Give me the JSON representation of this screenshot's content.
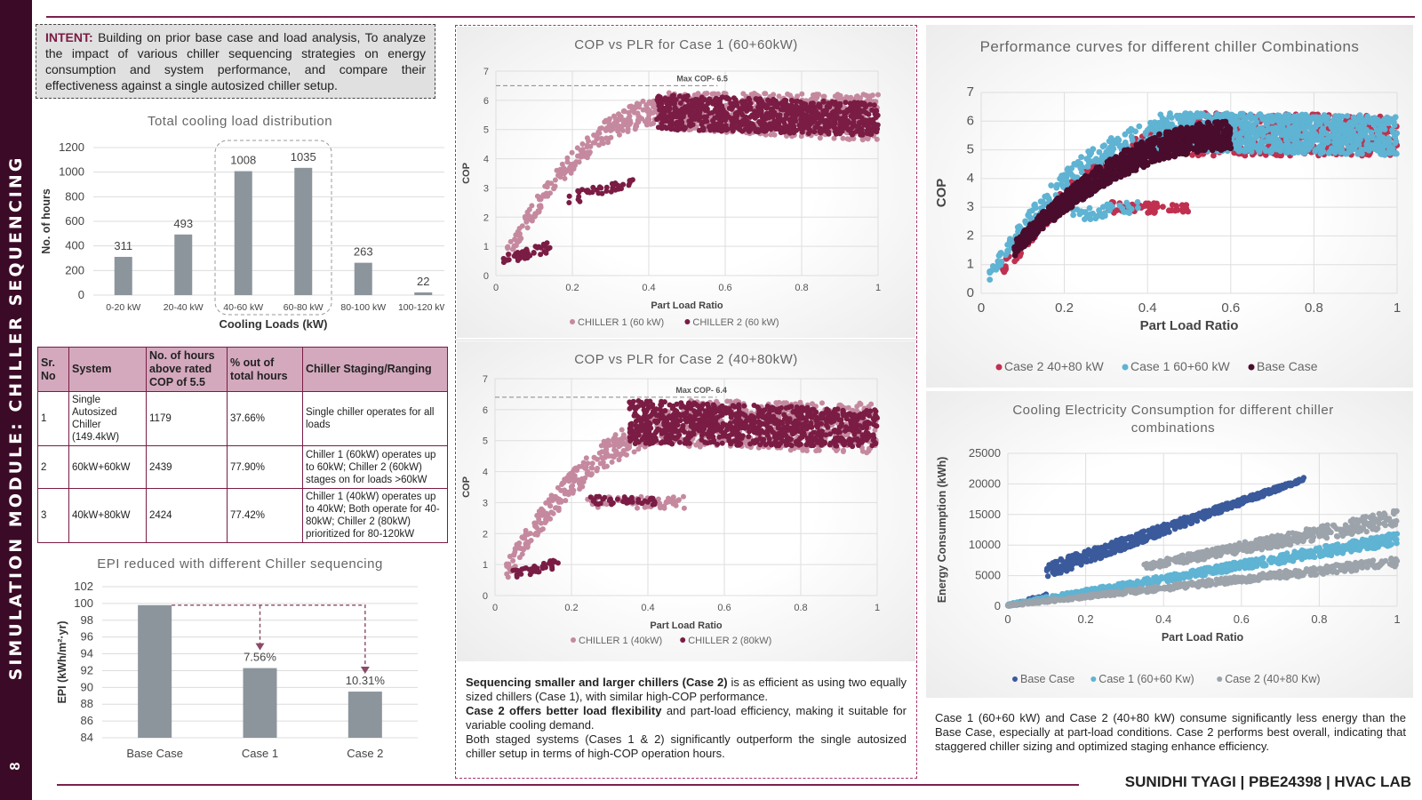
{
  "sidebar": {
    "title": "SIMULATION MODULE: CHILLER SEQUENCING",
    "page_number": "8"
  },
  "intent": {
    "label": "INTENT:",
    "text": "Building on prior base case and load analysis, To analyze the impact of various chiller sequencing strategies on energy consumption and system performance, and compare their effectiveness against a single autosized chiller setup."
  },
  "staging_table": {
    "headers": [
      "Sr. No",
      "System",
      "No. of hours above rated COP of 5.5",
      "% out of total hours",
      "Chiller Staging/Ranging"
    ],
    "rows": [
      [
        "1",
        "Single Autosized Chiller (149.4kW)",
        "1179",
        "37.66%",
        "Single chiller operates for all loads"
      ],
      [
        "2",
        "60kW+60kW",
        "2439",
        "77.90%",
        "Chiller 1 (60kW) operates up to 60kW; Chiller 2 (60kW) stages on for loads >60kW"
      ],
      [
        "3",
        "40kW+80kW",
        "2424",
        "77.42%",
        "Chiller 1 (40kW) operates up to 40kW; Both operate for 40-80kW; Chiller 2 (80kW) prioritized for 80-120kW"
      ]
    ]
  },
  "mid_text": {
    "p1_bold": "Sequencing smaller and larger chillers (Case 2)",
    "p1_rest": " is as efficient as using two equally sized chillers (Case 1), with similar high-COP performance.",
    "p2_bold": "Case 2 offers better load flexibility",
    "p2_rest": " and part-load efficiency, making it suitable for variable cooling demand.",
    "p3": "Both staged systems (Cases 1 & 2) significantly outperform the single autosized chiller setup in terms of high-COP operation hours."
  },
  "right_text": "Case 1 (60+60 kW) and Case 2 (40+80 kW) consume significantly less energy than the Base Case, especially at part-load conditions. Case 2 performs best overall, indicating that staggered chiller sizing and optimized staging enhance efficiency.",
  "footer": "SUNIDHI TYAGI | PBE24398 | HVAC LAB",
  "colors": {
    "accent": "#7a1c44",
    "sidebar": "#3b0a26",
    "bar_gray": "#8c959c",
    "chiller1": "#c5899f",
    "chiller2": "#7a1c44",
    "base_case_dark": "#4a0c2c",
    "case1_blue": "#5fb3d3",
    "case2_red": "#c0304f",
    "energy_base": "#3a5a9c",
    "energy_case1": "#5fb3d3",
    "energy_case2": "#9ca3aa"
  },
  "chart_data": [
    {
      "id": "load_dist",
      "type": "bar",
      "title": "Total cooling load distribution",
      "xlabel": "Cooling Loads (kW)",
      "ylabel": "No. of hours",
      "categories": [
        "0-20 kW",
        "20-40 kW",
        "40-60 kW",
        "60-80 kW",
        "80-100 kW",
        "100-120 kW"
      ],
      "values": [
        311,
        493,
        1008,
        1035,
        263,
        22
      ],
      "yticks": [
        0,
        200,
        400,
        600,
        800,
        1000,
        1200
      ],
      "ylim": [
        0,
        1200
      ],
      "highlight": [
        "40-60 kW",
        "60-80 kW"
      ]
    },
    {
      "id": "epi",
      "type": "bar",
      "title": "EPI reduced with different Chiller sequencing",
      "ylabel": "EPI (kWh/m²·yr)",
      "categories": [
        "Base Case",
        "Case 1",
        "Case 2"
      ],
      "values": [
        99.8,
        92.3,
        89.5
      ],
      "data_labels": [
        "",
        "7.56%",
        "10.31%"
      ],
      "yticks": [
        84,
        86,
        88,
        90,
        92,
        94,
        96,
        98,
        100,
        102
      ],
      "ylim": [
        84,
        102
      ]
    },
    {
      "id": "case1",
      "type": "scatter",
      "title": "COP vs PLR for Case 1 (60+60kW)",
      "xlabel": "Part Load Ratio",
      "ylabel": "COP",
      "xlim": [
        0,
        1
      ],
      "ylim": [
        0,
        7
      ],
      "xticks": [
        "0",
        "0.2",
        "0.4",
        "0.6",
        "0.8",
        "1"
      ],
      "yticks": [
        "0",
        "1",
        "2",
        "3",
        "4",
        "5",
        "6",
        "7"
      ],
      "annotation": "Max COP- 6.5",
      "max_cop": 6.5,
      "series": [
        {
          "name": "CHILLER 1 (60 kW)",
          "color": "#c5899f",
          "bands": [
            {
              "x0": 0.03,
              "x1": 0.45,
              "shape": "rise",
              "ylow0": 0.5,
              "yhigh0": 1.0,
              "ylow1": 5.2,
              "yhigh1": 6.1,
              "n": 260
            },
            {
              "x0": 0.45,
              "x1": 1.0,
              "shape": "flat",
              "ylow0": 5.0,
              "yhigh0": 6.3,
              "ylow1": 4.6,
              "yhigh1": 6.2,
              "n": 620
            }
          ]
        },
        {
          "name": "CHILLER 2 (60 kW)",
          "color": "#7a1c44",
          "bands": [
            {
              "x0": 0.02,
              "x1": 0.15,
              "shape": "linear",
              "ylow0": 0.4,
              "yhigh0": 0.7,
              "ylow1": 0.8,
              "yhigh1": 1.2,
              "n": 40
            },
            {
              "x0": 0.19,
              "x1": 0.36,
              "shape": "linear",
              "ylow0": 2.4,
              "yhigh0": 2.9,
              "ylow1": 3.1,
              "yhigh1": 3.3,
              "n": 40
            },
            {
              "x0": 0.42,
              "x1": 1.0,
              "shape": "flat",
              "ylow0": 5.0,
              "yhigh0": 6.2,
              "ylow1": 4.8,
              "yhigh1": 5.9,
              "n": 820
            }
          ]
        }
      ]
    },
    {
      "id": "case2",
      "type": "scatter",
      "title": "COP vs PLR for Case 2 (40+80kW)",
      "xlabel": "Part Load Ratio",
      "ylabel": "COP",
      "xlim": [
        0,
        1
      ],
      "ylim": [
        0,
        7
      ],
      "xticks": [
        "0",
        "0.2",
        "0.4",
        "0.6",
        "0.8",
        "1"
      ],
      "yticks": [
        "0",
        "1",
        "2",
        "3",
        "4",
        "5",
        "6",
        "7"
      ],
      "annotation": "Max COP- 6.4",
      "max_cop": 6.4,
      "series": [
        {
          "name": "CHILLER 1 (40kW)",
          "color": "#c5899f",
          "bands": [
            {
              "x0": 0.03,
              "x1": 0.5,
              "shape": "rise",
              "ylow0": 0.5,
              "yhigh0": 1.1,
              "ylow1": 5.0,
              "yhigh1": 6.0,
              "n": 300
            },
            {
              "x0": 0.24,
              "x1": 0.5,
              "shape": "linear",
              "ylow0": 2.8,
              "yhigh0": 3.2,
              "ylow1": 2.8,
              "yhigh1": 3.2,
              "n": 60
            },
            {
              "x0": 0.5,
              "x1": 1.0,
              "shape": "flat",
              "ylow0": 4.8,
              "yhigh0": 6.3,
              "ylow1": 4.6,
              "yhigh1": 6.2,
              "n": 500
            }
          ]
        },
        {
          "name": "CHILLER 2 (80kW)",
          "color": "#7a1c44",
          "bands": [
            {
              "x0": 0.04,
              "x1": 0.17,
              "shape": "linear",
              "ylow0": 0.5,
              "yhigh0": 0.8,
              "ylow1": 0.9,
              "yhigh1": 1.2,
              "n": 40
            },
            {
              "x0": 0.24,
              "x1": 0.42,
              "shape": "linear",
              "ylow0": 2.9,
              "yhigh0": 3.2,
              "ylow1": 2.9,
              "yhigh1": 3.2,
              "n": 40
            },
            {
              "x0": 0.35,
              "x1": 1.0,
              "shape": "flat",
              "ylow0": 4.9,
              "yhigh0": 6.3,
              "ylow1": 4.8,
              "yhigh1": 6.0,
              "n": 900
            }
          ]
        }
      ]
    },
    {
      "id": "performance",
      "type": "scatter",
      "title": "Performance curves for different chiller Combinations",
      "xlabel": "Part Load Ratio",
      "ylabel": "COP",
      "xlim": [
        0,
        1
      ],
      "ylim": [
        0,
        7
      ],
      "xticks": [
        "0",
        "0.2",
        "0.4",
        "0.6",
        "0.8",
        "1"
      ],
      "yticks": [
        "0",
        "1",
        "2",
        "3",
        "4",
        "5",
        "6",
        "7"
      ],
      "series": [
        {
          "name": "Case 2 40+80 kW",
          "color": "#c0304f",
          "bands": [
            {
              "x0": 0.05,
              "x1": 0.5,
              "shape": "rise",
              "ylow0": 0.5,
              "yhigh0": 1.0,
              "ylow1": 4.8,
              "yhigh1": 5.8,
              "n": 220
            },
            {
              "x0": 0.3,
              "x1": 0.5,
              "shape": "linear",
              "ylow0": 2.8,
              "yhigh0": 3.2,
              "ylow1": 2.8,
              "yhigh1": 3.1,
              "n": 60
            },
            {
              "x0": 0.5,
              "x1": 1.0,
              "shape": "flat",
              "ylow0": 4.8,
              "yhigh0": 6.3,
              "ylow1": 4.8,
              "yhigh1": 6.2,
              "n": 500
            }
          ]
        },
        {
          "name": "Case 1 60+60 kW",
          "color": "#5fb3d3",
          "bands": [
            {
              "x0": 0.02,
              "x1": 0.45,
              "shape": "rise",
              "ylow0": 0.4,
              "yhigh0": 0.8,
              "ylow1": 5.2,
              "yhigh1": 6.0,
              "n": 220
            },
            {
              "x0": 0.22,
              "x1": 0.38,
              "shape": "linear",
              "ylow0": 2.5,
              "yhigh0": 3.0,
              "ylow1": 2.8,
              "yhigh1": 3.2,
              "n": 40
            },
            {
              "x0": 0.42,
              "x1": 1.0,
              "shape": "flat",
              "ylow0": 5.0,
              "yhigh0": 6.3,
              "ylow1": 4.8,
              "yhigh1": 6.2,
              "n": 900
            }
          ]
        },
        {
          "name": "Base Case",
          "color": "#4a0c2c",
          "bands": [
            {
              "x0": 0.08,
              "x1": 0.6,
              "shape": "rise",
              "ylow0": 1.3,
              "yhigh0": 1.8,
              "ylow1": 5.0,
              "yhigh1": 6.0,
              "n": 900
            }
          ]
        }
      ]
    },
    {
      "id": "energy",
      "type": "scatter",
      "title": "Cooling Electricity Consumption for different chiller combinations",
      "xlabel": "Part Load Ratio",
      "ylabel": "Energy Consumption (kWh)",
      "xlim": [
        0,
        1
      ],
      "ylim": [
        0,
        25000
      ],
      "xticks": [
        "0",
        "0.2",
        "0.4",
        "0.6",
        "0.8",
        "1"
      ],
      "yticks": [
        "0",
        "5000",
        "10000",
        "15000",
        "20000",
        "25000"
      ],
      "series": [
        {
          "name": "Base Case",
          "color": "#3a5a9c",
          "bands": [
            {
              "x0": 0.0,
              "x1": 0.1,
              "shape": "linear",
              "ylow0": 0,
              "yhigh0": 300,
              "ylow1": 1000,
              "yhigh1": 2000,
              "n": 40
            },
            {
              "x0": 0.1,
              "x1": 0.76,
              "shape": "linear",
              "ylow0": 4500,
              "yhigh0": 7000,
              "ylow1": 20500,
              "yhigh1": 21000,
              "n": 600
            }
          ]
        },
        {
          "name": "Case 1 (60+60 Kw)",
          "color": "#5fb3d3",
          "bands": [
            {
              "x0": 0.0,
              "x1": 1.0,
              "shape": "linear",
              "ylow0": 0,
              "yhigh0": 400,
              "ylow1": 10000,
              "yhigh1": 12000,
              "n": 700
            }
          ]
        },
        {
          "name": "Case 2 (40+80 Kw)",
          "color": "#9ca3aa",
          "bands": [
            {
              "x0": 0.0,
              "x1": 1.0,
              "shape": "linear",
              "ylow0": 0,
              "yhigh0": 300,
              "ylow1": 6500,
              "yhigh1": 8000,
              "n": 500
            },
            {
              "x0": 0.35,
              "x1": 1.0,
              "shape": "linear",
              "ylow0": 6000,
              "yhigh0": 7000,
              "ylow1": 13000,
              "yhigh1": 15800,
              "n": 450
            }
          ]
        }
      ]
    }
  ]
}
